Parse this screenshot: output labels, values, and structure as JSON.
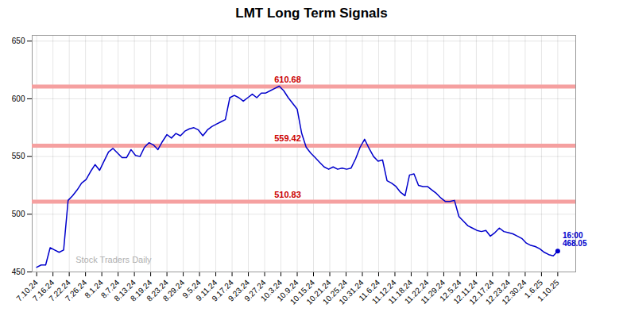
{
  "chart_data": {
    "type": "line",
    "title": "LMT Long Term Signals",
    "watermark": "Stock Traders Daily",
    "series": [
      {
        "name": "LMT",
        "color": "#0000cc",
        "values": [
          454,
          456,
          456,
          471,
          469,
          467,
          469,
          512,
          516,
          521,
          527,
          530,
          537,
          543,
          538,
          546,
          554,
          557,
          553,
          549,
          549,
          556,
          551,
          550,
          558,
          562,
          560,
          556,
          563,
          569,
          566,
          570,
          568,
          572,
          574,
          575,
          573,
          568,
          573,
          576,
          578,
          580,
          582,
          601,
          603,
          601,
          598,
          601,
          604,
          601,
          605,
          605,
          607,
          609,
          611,
          607,
          601,
          596,
          591,
          570,
          558,
          553,
          549,
          545,
          541,
          539,
          541,
          539,
          540,
          539,
          540,
          548,
          558,
          565,
          557,
          550,
          546,
          547,
          529,
          527,
          524,
          519,
          516,
          534,
          535,
          525,
          524,
          524,
          521,
          518,
          514,
          511,
          511,
          512,
          498,
          494,
          490,
          488,
          486,
          485,
          486,
          481,
          484,
          488,
          485,
          484,
          483,
          481,
          479,
          475,
          473,
          472,
          470,
          467,
          465,
          464,
          468
        ]
      }
    ],
    "reference_lines": [
      {
        "value": 510.83,
        "label": "510.83",
        "color": "#f5a0a0",
        "label_color": "#cc0000"
      },
      {
        "value": 559.42,
        "label": "559.42",
        "color": "#f5a0a0",
        "label_color": "#cc0000"
      },
      {
        "value": 610.68,
        "label": "610.68",
        "color": "#f5a0a0",
        "label_color": "#cc0000"
      }
    ],
    "annotations": [
      {
        "text": "16:00\n468.05",
        "color": "#0000cc"
      }
    ],
    "xlim": [
      -1,
      120
    ],
    "xticks": [
      {
        "value": 0,
        "label": "7.10.24"
      },
      {
        "value": 3.625,
        "label": "7.16.24"
      },
      {
        "value": 7.25,
        "label": "7.22.24"
      },
      {
        "value": 10.875,
        "label": "7.26.24"
      },
      {
        "value": 14.5,
        "label": "8.1.24"
      },
      {
        "value": 18.125,
        "label": "8.7.24"
      },
      {
        "value": 21.75,
        "label": "8.13.24"
      },
      {
        "value": 25.375,
        "label": "8.19.24"
      },
      {
        "value": 29,
        "label": "8.23.24"
      },
      {
        "value": 32.625,
        "label": "8.29.24"
      },
      {
        "value": 36.25,
        "label": "9.5.24"
      },
      {
        "value": 39.875,
        "label": "9.11.24"
      },
      {
        "value": 43.5,
        "label": "9.17.24"
      },
      {
        "value": 47.125,
        "label": "9.23.24"
      },
      {
        "value": 50.75,
        "label": "9.27.24"
      },
      {
        "value": 54.375,
        "label": "10.3.24"
      },
      {
        "value": 58,
        "label": "10.9.24"
      },
      {
        "value": 61.625,
        "label": "10.15.24"
      },
      {
        "value": 65.25,
        "label": "10.21.24"
      },
      {
        "value": 68.875,
        "label": "10.25.24"
      },
      {
        "value": 72.5,
        "label": "10.31.24"
      },
      {
        "value": 76.125,
        "label": "11.6.24"
      },
      {
        "value": 79.75,
        "label": "11.12.24"
      },
      {
        "value": 83.375,
        "label": "11.18.24"
      },
      {
        "value": 87,
        "label": "11.22.24"
      },
      {
        "value": 90.625,
        "label": "11.29.24"
      },
      {
        "value": 94.25,
        "label": "12.5.24"
      },
      {
        "value": 97.875,
        "label": "12.11.24"
      },
      {
        "value": 101.5,
        "label": "12.17.24"
      },
      {
        "value": 105.125,
        "label": "12.23.24"
      },
      {
        "value": 108.75,
        "label": "12.30.24"
      },
      {
        "value": 112.375,
        "label": "1.6.25"
      },
      {
        "value": 116,
        "label": "1.10.25"
      }
    ],
    "ylim": [
      450,
      655
    ],
    "yticks": [
      450,
      500,
      550,
      600,
      650
    ],
    "grid": true
  }
}
